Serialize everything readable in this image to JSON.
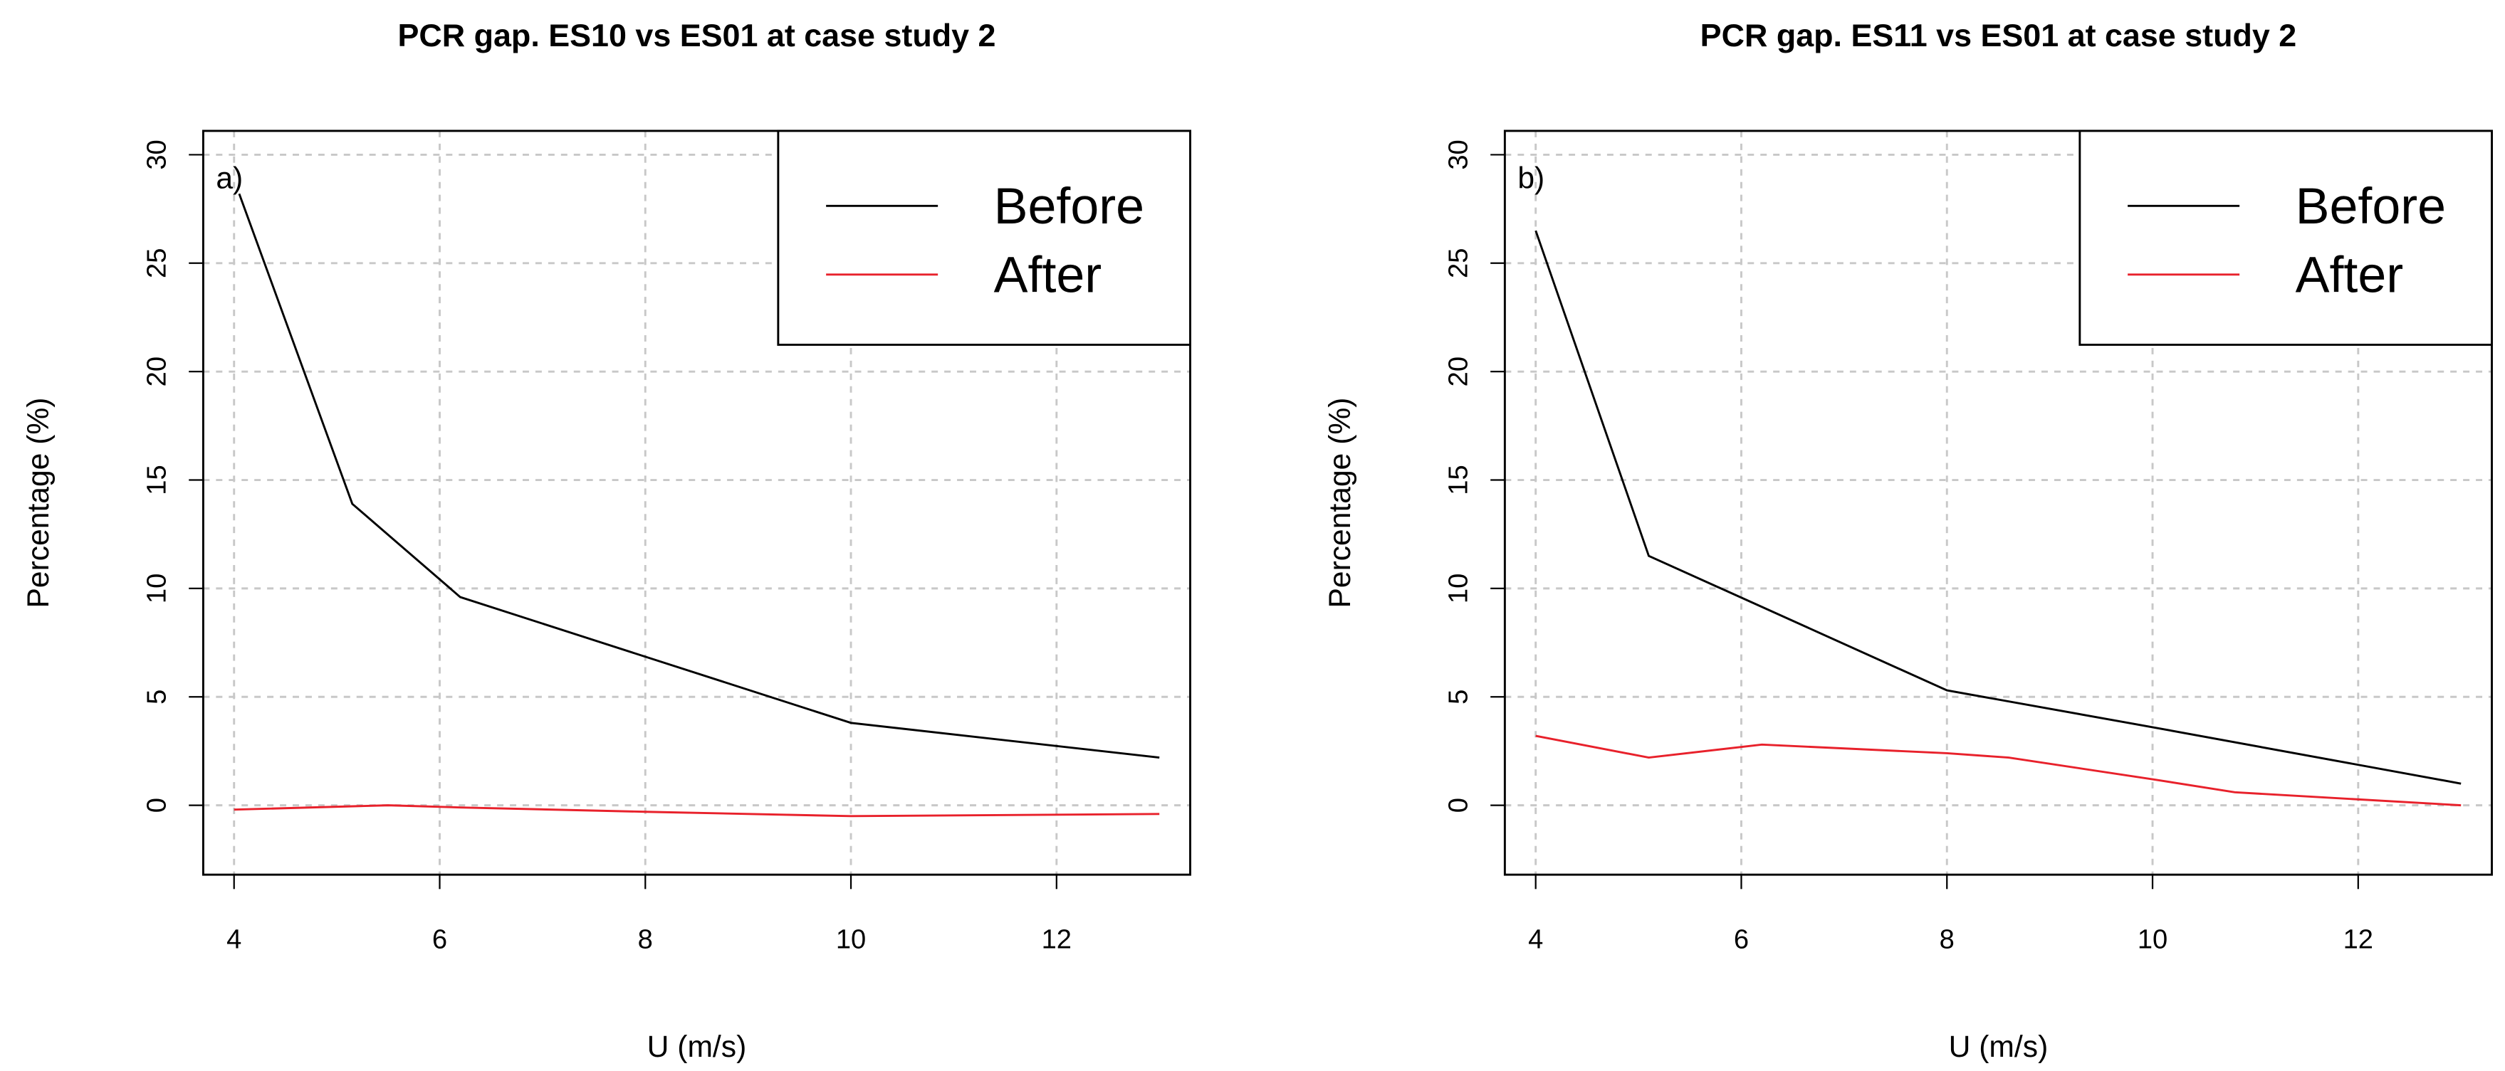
{
  "chart_data": [
    {
      "type": "line",
      "title": "PCR gap. ES10 vs ES01 at case study 2",
      "annotation": "a)",
      "x_label": "U (m/s)",
      "y_label": "Percentage (%)",
      "xlim": [
        3.7,
        13.3
      ],
      "ylim": [
        -3.2,
        31.1
      ],
      "xticks": [
        4,
        6,
        8,
        10,
        12
      ],
      "yticks": [
        0,
        5,
        10,
        15,
        20,
        25,
        30
      ],
      "grid": true,
      "legend": "topright",
      "series": [
        {
          "name": "Before",
          "color": "#000000",
          "x": [
            4.05,
            5.15,
            6.2,
            10,
            13
          ],
          "values": [
            28.2,
            13.9,
            9.6,
            3.8,
            2.2
          ]
        },
        {
          "name": "After",
          "color": "#e8212b",
          "x": [
            4,
            5.5,
            6.2,
            8,
            10,
            13
          ],
          "values": [
            -0.2,
            0,
            -0.1,
            -0.3,
            -0.5,
            -0.4
          ]
        }
      ]
    },
    {
      "type": "line",
      "title": "PCR gap. ES11 vs ES01 at case study 2",
      "annotation": "b)",
      "x_label": "U (m/s)",
      "y_label": "Percentage (%)",
      "xlim": [
        3.7,
        13.3
      ],
      "ylim": [
        -3.2,
        31.1
      ],
      "xticks": [
        4,
        6,
        8,
        10,
        12
      ],
      "yticks": [
        0,
        5,
        10,
        15,
        20,
        25,
        30
      ],
      "grid": true,
      "legend": "topright",
      "series": [
        {
          "name": "Before",
          "color": "#000000",
          "x": [
            4,
            5.1,
            8,
            10,
            13
          ],
          "values": [
            26.5,
            11.5,
            5.3,
            3.6,
            1.0
          ]
        },
        {
          "name": "After",
          "color": "#e8212b",
          "x": [
            4,
            5.1,
            6.2,
            8,
            8.6,
            10,
            10.8,
            13
          ],
          "values": [
            3.2,
            2.2,
            2.8,
            2.4,
            2.2,
            1.2,
            0.6,
            0
          ]
        }
      ]
    }
  ]
}
